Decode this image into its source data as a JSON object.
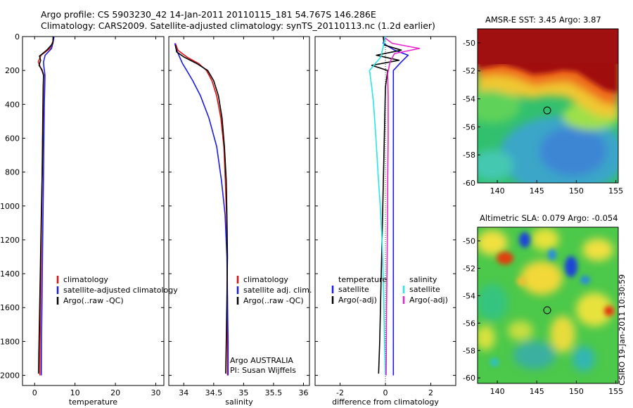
{
  "header": {
    "line1": "Argo profile: CS 5903230_42 14-Jan-2011 20110115_181 54.767S 146.286E",
    "line2": "Climatology: CARS2009. Satellite-adjusted climatology: synTS_20110113.nc (1.2d earlier)"
  },
  "credit": "CSIRO 19-Jan-2011 10:30:59",
  "colors": {
    "climatology": "#e01010",
    "satellite": "#1a1aee",
    "argo": "#000000",
    "cyan": "#22e8e8",
    "magenta": "#ee22cc"
  },
  "chart_data": [
    {
      "type": "line",
      "id": "temperature",
      "xlabel": "temperature",
      "xlim": [
        -3,
        32
      ],
      "ylim": [
        2060,
        0
      ],
      "xticks": [
        0,
        10,
        20,
        30
      ],
      "xtick_labels": [
        "0",
        "10",
        "20",
        "30"
      ],
      "yticks": [
        0,
        200,
        400,
        600,
        800,
        1000,
        1200,
        1400,
        1600,
        1800,
        2000
      ],
      "ytick_labels": [
        "0",
        "200",
        "400",
        "600",
        "800",
        "1000",
        "1200",
        "1400",
        "1600",
        "1800",
        "2000"
      ],
      "legend": [
        "climatology",
        "satellite-adjusted climatology",
        "Argo(..raw -QC)"
      ],
      "annotations": [],
      "series": [
        {
          "name": "climatology",
          "color": "#e01010",
          "x": [
            4.8,
            4.5,
            3.8,
            1.6,
            0.9,
            1.4,
            1.9,
            2.2,
            2.1,
            2.05,
            1.95,
            1.85,
            1.75,
            1.65,
            1.55,
            1.45,
            1.35,
            1.3
          ],
          "y": [
            0,
            30,
            70,
            110,
            150,
            180,
            205,
            230,
            300,
            400,
            600,
            800,
            1000,
            1200,
            1400,
            1600,
            1800,
            2000
          ]
        },
        {
          "name": "satellite-adjusted climatology",
          "color": "#1a1aee",
          "x": [
            4.8,
            4.6,
            4.2,
            2.6,
            2.2,
            2.3,
            2.45,
            2.55,
            2.5,
            2.4,
            2.3,
            2.2,
            2.1,
            2.0,
            1.9,
            1.8,
            1.7,
            1.65
          ],
          "y": [
            0,
            30,
            70,
            110,
            150,
            180,
            205,
            230,
            300,
            400,
            600,
            800,
            1000,
            1200,
            1400,
            1600,
            1800,
            2000
          ]
        },
        {
          "name": "Argo(..raw -QC)",
          "color": "#000000",
          "x": [
            4.6,
            4.5,
            3.0,
            1.2,
            1.5,
            1.1,
            1.8,
            2.2,
            2.15,
            2.1,
            2.0,
            1.9,
            1.7,
            1.55,
            1.4,
            1.25,
            1.1,
            0.95
          ],
          "y": [
            0,
            40,
            80,
            115,
            140,
            170,
            195,
            225,
            300,
            400,
            600,
            800,
            1000,
            1200,
            1400,
            1600,
            1800,
            1990
          ]
        }
      ]
    },
    {
      "type": "line",
      "id": "salinity",
      "xlabel": "salinity",
      "xlim": [
        33.75,
        36.1
      ],
      "ylim": [
        2060,
        0
      ],
      "xticks": [
        34,
        34.5,
        35,
        35.5,
        36
      ],
      "xtick_labels": [
        "34",
        "34.5",
        "35",
        "35.5",
        "36"
      ],
      "legend": [
        "climatology",
        "satellite adj. clim.",
        "Argo(..raw -QC)"
      ],
      "annotations": [
        "Argo AUSTRALIA",
        "PI: Susan Wijffels"
      ],
      "series": [
        {
          "name": "climatology",
          "color": "#e01010",
          "x": [
            33.86,
            33.9,
            34.05,
            34.25,
            34.38,
            34.47,
            34.55,
            34.62,
            34.67,
            34.695,
            34.715,
            34.725,
            34.73,
            34.73,
            34.73
          ],
          "y": [
            40,
            80,
            120,
            160,
            200,
            260,
            350,
            480,
            650,
            850,
            1050,
            1300,
            1550,
            1800,
            2000
          ]
        },
        {
          "name": "satellite adj. clim.",
          "color": "#1a1aee",
          "x": [
            33.85,
            33.88,
            33.93,
            33.98,
            34.05,
            34.15,
            34.28,
            34.42,
            34.55,
            34.63,
            34.69,
            34.72,
            34.73,
            34.74,
            34.74
          ],
          "y": [
            40,
            80,
            120,
            160,
            200,
            260,
            350,
            480,
            650,
            850,
            1050,
            1300,
            1550,
            1800,
            2000
          ]
        },
        {
          "name": "Argo(..raw -QC)",
          "color": "#000000",
          "x": [
            33.86,
            33.88,
            34.0,
            34.22,
            34.4,
            34.5,
            34.58,
            34.64,
            34.68,
            34.71,
            34.72,
            34.73,
            34.72,
            34.71,
            34.7
          ],
          "y": [
            50,
            90,
            120,
            160,
            200,
            260,
            350,
            480,
            650,
            850,
            1050,
            1300,
            1550,
            1800,
            1990
          ]
        }
      ]
    },
    {
      "type": "line",
      "id": "difference",
      "xlabel": "difference from climatology",
      "xlim": [
        -3.1,
        3.1
      ],
      "ylim": [
        2060,
        0
      ],
      "xticks": [
        -2,
        0,
        2
      ],
      "xtick_labels": [
        "-2",
        "0",
        "2"
      ],
      "legend_titles": [
        "temperature",
        "salinity"
      ],
      "legend": [
        "satellite",
        "Argo(-adj)",
        "satellite",
        "Argo(-adj)"
      ],
      "annotations": [],
      "series": [
        {
          "name": "temperature satellite",
          "color": "#1a1aee",
          "x": [
            0.0,
            -0.1,
            0.4,
            1.0,
            0.7,
            0.35,
            0.35,
            0.35,
            0.35,
            0.35,
            0.35,
            0.35,
            0.35,
            0.35
          ],
          "y": [
            0,
            40,
            80,
            110,
            150,
            200,
            300,
            500,
            800,
            1100,
            1400,
            1700,
            1900,
            2000
          ]
        },
        {
          "name": "temperature Argo(-adj)",
          "color": "#000000",
          "x": [
            -0.1,
            -0.05,
            0.7,
            -0.4,
            0.6,
            -0.6,
            0.1,
            0.0,
            -0.05,
            -0.1,
            -0.15,
            -0.2,
            -0.25,
            -0.3
          ],
          "y": [
            0,
            50,
            80,
            110,
            140,
            170,
            200,
            300,
            600,
            900,
            1200,
            1500,
            1800,
            1990
          ]
        },
        {
          "name": "salinity satellite",
          "color": "#22e8e8",
          "x": [
            0.0,
            -0.1,
            -0.2,
            -0.45,
            -0.7,
            -0.6,
            -0.52,
            -0.42,
            -0.33,
            -0.23,
            -0.15,
            -0.08,
            -0.04,
            0.0
          ],
          "y": [
            0,
            60,
            120,
            160,
            200,
            300,
            400,
            600,
            800,
            1000,
            1200,
            1500,
            1800,
            2000
          ]
        },
        {
          "name": "salinity Argo(-adj)",
          "color": "#ee22cc",
          "x": [
            0.0,
            0.3,
            1.5,
            0.4,
            0.2,
            0.1,
            0.12,
            0.12,
            0.1,
            0.09,
            0.07,
            0.05,
            0.04,
            0.03
          ],
          "y": [
            10,
            40,
            70,
            100,
            150,
            220,
            350,
            600,
            850,
            1100,
            1350,
            1600,
            1850,
            2000
          ]
        }
      ]
    },
    {
      "type": "heatmap",
      "id": "sst-map",
      "title": "AMSR-E SST: 3.45 Argo: 3.87",
      "xlim": [
        137.5,
        155.3
      ],
      "ylim": [
        -60,
        -49
      ],
      "xticks": [
        140,
        145,
        150,
        155
      ],
      "xtick_labels": [
        "140",
        "145",
        "150",
        "155"
      ],
      "yticks": [
        -50,
        -52,
        -54,
        -56,
        -58,
        -60
      ],
      "ytick_labels": [
        "-50",
        "-52",
        "-54",
        "-56",
        "-58",
        "-60"
      ],
      "marker": {
        "lon": 146.3,
        "lat": -54.77
      }
    },
    {
      "type": "heatmap",
      "id": "sla-map",
      "title": "Altimetric SLA: 0.079 Argo: -0.054",
      "xlim": [
        137.5,
        155.3
      ],
      "ylim": [
        -60.4,
        -49
      ],
      "xticks": [
        140,
        145,
        150,
        155
      ],
      "xtick_labels": [
        "140",
        "145",
        "150",
        "155"
      ],
      "yticks": [
        -50,
        -52,
        -54,
        -56,
        -58,
        -60
      ],
      "ytick_labels": [
        "-50",
        "-52",
        "-54",
        "-56",
        "-58",
        "-60"
      ],
      "marker": {
        "lon": 146.3,
        "lat": -54.77
      }
    }
  ]
}
